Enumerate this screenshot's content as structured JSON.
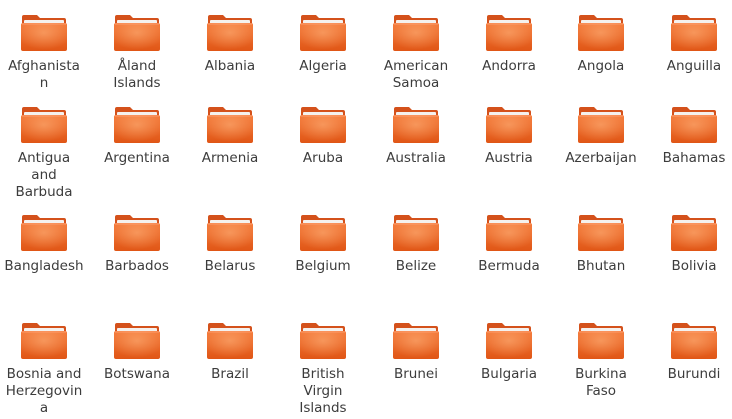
{
  "window": {
    "view": "icon-grid"
  },
  "colors": {
    "folder_front_top": "#f47a3a",
    "folder_front_bottom": "#e05616",
    "folder_back": "#d4511b",
    "folder_paper": "#f4f1ee",
    "label_text": "#3c3c3c",
    "background": "#ffffff"
  },
  "icon": "folder-icon",
  "folders": [
    {
      "label": "Afghanistan",
      "lines": [
        "Afghanista",
        "n"
      ]
    },
    {
      "label": "Åland Islands",
      "lines": [
        "Åland",
        "Islands"
      ]
    },
    {
      "label": "Albania",
      "lines": [
        "Albania"
      ]
    },
    {
      "label": "Algeria",
      "lines": [
        "Algeria"
      ]
    },
    {
      "label": "American Samoa",
      "lines": [
        "American",
        "Samoa"
      ]
    },
    {
      "label": "Andorra",
      "lines": [
        "Andorra"
      ]
    },
    {
      "label": "Angola",
      "lines": [
        "Angola"
      ]
    },
    {
      "label": "Anguilla",
      "lines": [
        "Anguilla"
      ]
    },
    {
      "label": "Antigua and Barbuda",
      "lines": [
        "Antigua",
        "and",
        "Barbuda"
      ]
    },
    {
      "label": "Argentina",
      "lines": [
        "Argentina"
      ]
    },
    {
      "label": "Armenia",
      "lines": [
        "Armenia"
      ]
    },
    {
      "label": "Aruba",
      "lines": [
        "Aruba"
      ]
    },
    {
      "label": "Australia",
      "lines": [
        "Australia"
      ]
    },
    {
      "label": "Austria",
      "lines": [
        "Austria"
      ]
    },
    {
      "label": "Azerbaijan",
      "lines": [
        "Azerbaijan"
      ]
    },
    {
      "label": "Bahamas",
      "lines": [
        "Bahamas"
      ]
    },
    {
      "label": "Bangladesh",
      "lines": [
        "Bangladesh"
      ]
    },
    {
      "label": "Barbados",
      "lines": [
        "Barbados"
      ]
    },
    {
      "label": "Belarus",
      "lines": [
        "Belarus"
      ]
    },
    {
      "label": "Belgium",
      "lines": [
        "Belgium"
      ]
    },
    {
      "label": "Belize",
      "lines": [
        "Belize"
      ]
    },
    {
      "label": "Bermuda",
      "lines": [
        "Bermuda"
      ]
    },
    {
      "label": "Bhutan",
      "lines": [
        "Bhutan"
      ]
    },
    {
      "label": "Bolivia",
      "lines": [
        "Bolivia"
      ]
    },
    {
      "label": "Bosnia and Herzegovina",
      "lines": [
        "Bosnia and",
        "Herzegovin",
        "a"
      ]
    },
    {
      "label": "Botswana",
      "lines": [
        "Botswana"
      ]
    },
    {
      "label": "Brazil",
      "lines": [
        "Brazil"
      ]
    },
    {
      "label": "British Virgin Islands",
      "lines": [
        "British",
        "Virgin",
        "Islands"
      ]
    },
    {
      "label": "Brunei",
      "lines": [
        "Brunei"
      ]
    },
    {
      "label": "Bulgaria",
      "lines": [
        "Bulgaria"
      ]
    },
    {
      "label": "Burkina Faso",
      "lines": [
        "Burkina",
        "Faso"
      ]
    },
    {
      "label": "Burundi",
      "lines": [
        "Burundi"
      ]
    }
  ]
}
